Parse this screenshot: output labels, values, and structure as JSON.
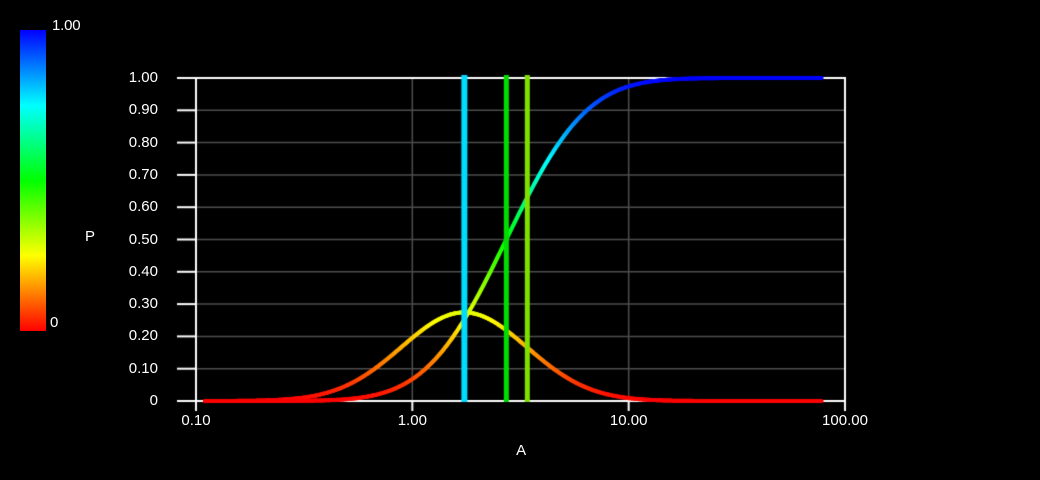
{
  "figure": {
    "background_color": "#000000",
    "text_color": "#FFFFFF",
    "grid_color": "#4E4E4E",
    "axis_color": "#FFFFFF"
  },
  "chart_data": {
    "type": "line",
    "title": "",
    "xlabel": "A",
    "ylabel": "P",
    "x_scale": "log",
    "xlim": [
      0.1,
      100
    ],
    "ylim": [
      0,
      1
    ],
    "grid": true,
    "x_ticks": [
      {
        "value": 0.1,
        "label": "0.10"
      },
      {
        "value": 1,
        "label": "1.00"
      },
      {
        "value": 10,
        "label": "10.00"
      },
      {
        "value": 100,
        "label": "100.00"
      }
    ],
    "y_ticks": [
      {
        "value": 0,
        "label": "0"
      },
      {
        "value": 0.1,
        "label": "0.10"
      },
      {
        "value": 0.2,
        "label": "0.20"
      },
      {
        "value": 0.3,
        "label": "0.30"
      },
      {
        "value": 0.4,
        "label": "0.40"
      },
      {
        "value": 0.5,
        "label": "0.50"
      },
      {
        "value": 0.6,
        "label": "0.60"
      },
      {
        "value": 0.7,
        "label": "0.70"
      },
      {
        "value": 0.8,
        "label": "0.80"
      },
      {
        "value": 0.9,
        "label": "0.90"
      },
      {
        "value": 1,
        "label": "1.00"
      }
    ],
    "color_encoding": "curve segments colored by P value: hue = 240*P (red at P=0 to blue at P=1)",
    "distribution": {
      "type": "lognormal",
      "mu_ln": 1.0,
      "sigma_ln": 0.67,
      "x_min": 0.11,
      "x_max": 78
    },
    "series": [
      {
        "name": "pdf",
        "x": [
          0.11,
          0.15,
          0.2,
          0.3,
          0.4,
          0.55,
          0.75,
          1.0,
          1.35,
          1.74,
          2.4,
          2.72,
          3.2,
          4.3,
          5.7,
          7.6,
          10,
          13.5,
          18,
          24,
          32,
          43,
          57,
          78
        ],
        "y": [
          0.0001,
          0.0003,
          0.0015,
          0.0089,
          0.025,
          0.063,
          0.125,
          0.195,
          0.255,
          0.274,
          0.244,
          0.219,
          0.181,
          0.11,
          0.057,
          0.024,
          0.009,
          0.0025,
          0.0006,
          0.0001,
          0,
          0,
          0,
          0
        ]
      },
      {
        "name": "cdf",
        "x": [
          0.11,
          0.15,
          0.2,
          0.3,
          0.4,
          0.55,
          0.75,
          1.0,
          1.35,
          1.74,
          2.4,
          2.72,
          3.2,
          4.3,
          5.7,
          7.6,
          10,
          13.5,
          18,
          24,
          32,
          43,
          57,
          78
        ],
        "y": [
          0,
          0,
          0,
          0.0005,
          0.002,
          0.0085,
          0.027,
          0.068,
          0.148,
          0.253,
          0.426,
          0.5,
          0.596,
          0.753,
          0.865,
          0.938,
          0.974,
          0.992,
          0.998,
          0.999,
          1,
          1,
          1,
          1
        ]
      }
    ],
    "vertical_lines": [
      {
        "x": 1.74,
        "color": "#00DCFF",
        "width": 6
      },
      {
        "x": 2.72,
        "color": "#00DD00",
        "width": 5
      },
      {
        "x": 3.4,
        "color": "#7FE000",
        "width": 5
      }
    ],
    "colorbar": {
      "label": "P",
      "top_label": "1.00",
      "bottom_label": "0",
      "colors_top_to_bottom": [
        "#0000FF",
        "#00FFFF",
        "#00FF00",
        "#FFFF00",
        "#FF0000"
      ]
    }
  }
}
